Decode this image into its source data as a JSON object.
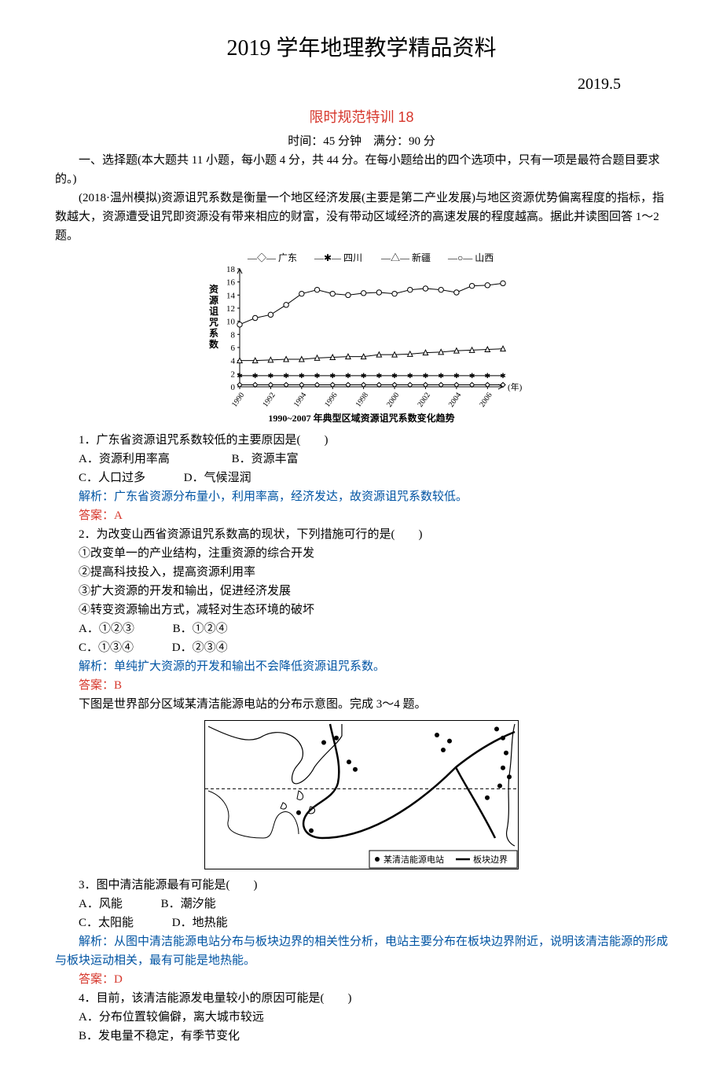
{
  "header": {
    "main_title": "2019 学年地理教学精品资料",
    "date": "2019.5",
    "subtitle": "限时规范特训 18",
    "timing": "时间：45 分钟　满分：90 分"
  },
  "section1_intro": "一、选择题(本大题共 11 小题，每小题 4 分，共 44 分。在每小题给出的四个选项中，只有一项是最符合题目要求的。)",
  "passage1": "(2018·温州模拟)资源诅咒系数是衡量一个地区经济发展(主要是第二产业发展)与地区资源优势偏离程度的指标，指数越大，资源遭受诅咒即资源没有带来相应的财富，没有带动区域经济的高速发展的程度越高。据此并读图回答 1～2 题。",
  "chart1": {
    "legend": [
      "广东",
      "四川",
      "新疆",
      "山西"
    ],
    "legend_markers": [
      "diamond",
      "asterisk",
      "triangle",
      "circle"
    ],
    "x_years": [
      "1990",
      "1992",
      "1994",
      "1996",
      "1998",
      "2000",
      "2002",
      "2004",
      "2006"
    ],
    "y_ticks": [
      0,
      2,
      4,
      6,
      8,
      10,
      12,
      14,
      16,
      18
    ],
    "x_label": "(年)",
    "x_label_left": "资源诅咒系数",
    "caption": "1990~2007 年典型区域资源诅咒系数变化趋势",
    "series": {
      "shanxi": [
        9.5,
        10.5,
        11.0,
        12.5,
        14.2,
        14.8,
        14.2,
        14.0,
        14.3,
        14.4,
        14.2,
        14.8,
        15.0,
        14.8,
        14.4,
        15.4,
        15.5,
        15.8
      ],
      "xinjiang": [
        4.0,
        4.0,
        4.1,
        4.2,
        4.2,
        4.4,
        4.5,
        4.6,
        4.6,
        4.9,
        4.9,
        5.0,
        5.2,
        5.3,
        5.5,
        5.6,
        5.7,
        5.8
      ],
      "sichuan": [
        1.7,
        1.7,
        1.7,
        1.7,
        1.7,
        1.7,
        1.7,
        1.7,
        1.7,
        1.7,
        1.7,
        1.7,
        1.7,
        1.7,
        1.7,
        1.7,
        1.7,
        1.7
      ],
      "guangdong": [
        0.3,
        0.3,
        0.3,
        0.3,
        0.3,
        0.3,
        0.3,
        0.3,
        0.3,
        0.3,
        0.3,
        0.3,
        0.3,
        0.3,
        0.3,
        0.3,
        0.3,
        0.3
      ]
    },
    "colors": {
      "axis": "#000",
      "line": "#000",
      "bg": "#fff"
    },
    "xlim": [
      1990,
      2007
    ],
    "ylim": [
      0,
      18
    ]
  },
  "q1": {
    "stem": "1．广东省资源诅咒系数较低的主要原因是(　　)",
    "optA": "A．资源利用率高",
    "optB": "B．资源丰富",
    "optC": "C．人口过多",
    "optD": "D．气候湿润",
    "explain": "解析：广东省资源分布量小，利用率高，经济发达，故资源诅咒系数较低。",
    "answer": "答案：A"
  },
  "q2": {
    "stem": "2．为改变山西省资源诅咒系数高的现状，下列措施可行的是(　　)",
    "opt1": "①改变单一的产业结构，注重资源的综合开发",
    "opt2": "②提高科技投入，提高资源利用率",
    "opt3": "③扩大资源的开发和输出，促进经济发展",
    "opt4": "④转变资源输出方式，减轻对生态环境的破坏",
    "optA": "A．①②③",
    "optB": "B．①②④",
    "optC": "C．①③④",
    "optD": "D．②③④",
    "explain": "解析：单纯扩大资源的开发和输出不会降低资源诅咒系数。",
    "answer": "答案：B"
  },
  "passage2": "下图是世界部分区域某清洁能源电站的分布示意图。完成 3～4 题。",
  "map": {
    "legend_station": "●某清洁能源电站",
    "legend_boundary": "— 板块边界",
    "stations": [
      [
        0.38,
        0.15
      ],
      [
        0.42,
        0.12
      ],
      [
        0.46,
        0.28
      ],
      [
        0.48,
        0.33
      ],
      [
        0.74,
        0.1
      ],
      [
        0.78,
        0.14
      ],
      [
        0.76,
        0.2
      ],
      [
        0.93,
        0.06
      ],
      [
        0.95,
        0.12
      ],
      [
        0.96,
        0.22
      ],
      [
        0.95,
        0.32
      ],
      [
        0.97,
        0.38
      ],
      [
        0.94,
        0.44
      ],
      [
        0.9,
        0.52
      ],
      [
        0.3,
        0.62
      ],
      [
        0.34,
        0.74
      ]
    ],
    "colors": {
      "line": "#000",
      "border": "#000",
      "bg": "#fff"
    }
  },
  "q3": {
    "stem": "3．图中清洁能源最有可能是(　　)",
    "optA": "A．风能",
    "optB": "B．潮汐能",
    "optC": "C．太阳能",
    "optD": "D．地热能",
    "explain": "解析：从图中清洁能源电站分布与板块边界的相关性分析，电站主要分布在板块边界附近，说明该清洁能源的形成与板块运动相关，最有可能是地热能。",
    "answer": "答案：D"
  },
  "q4": {
    "stem": "4．目前，该清洁能源发电量较小的原因可能是(　　)",
    "optA": "A．分布位置较偏僻，离大城市较远",
    "optB": "B．发电量不稳定，有季节变化"
  }
}
